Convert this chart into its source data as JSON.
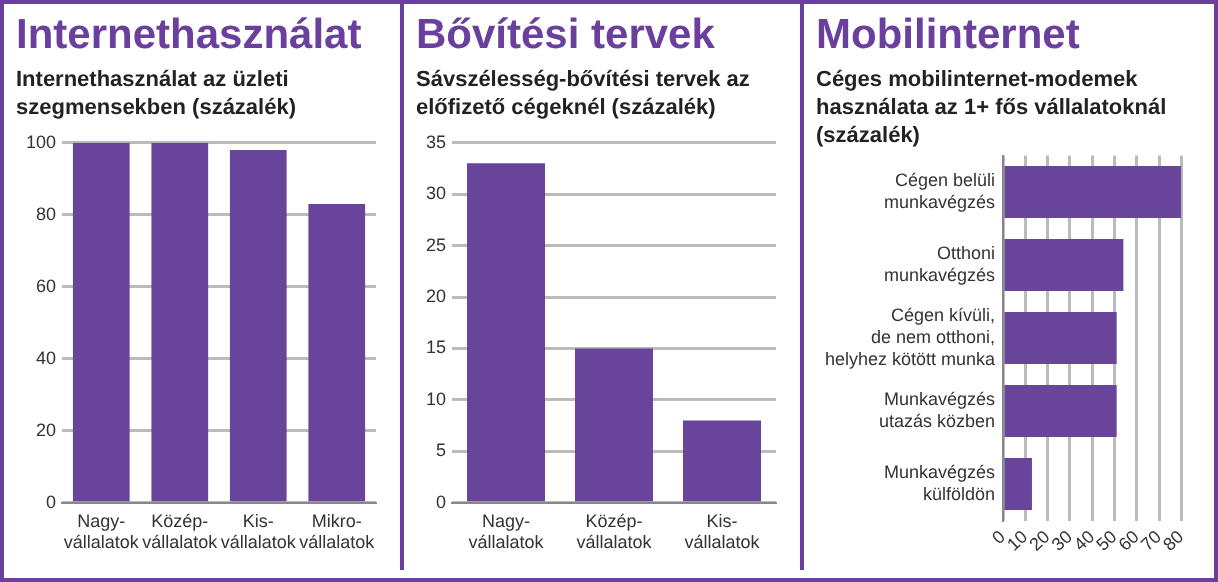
{
  "chart_data": [
    {
      "type": "bar",
      "title": "Internethasználat",
      "subtitle": "Internethasználat az üzleti szegmensekben (százalék)",
      "categories": [
        "Nagy-\nvállalatok",
        "Közép-\nvállalatok",
        "Kis-\nvállalatok",
        "Mikro-\nvállalatok"
      ],
      "values": [
        100,
        100,
        98,
        83
      ],
      "color": "#68459b",
      "ylim": [
        0,
        100
      ],
      "yticks": [
        0,
        20,
        40,
        60,
        80,
        100
      ],
      "grid": "y"
    },
    {
      "type": "bar",
      "title": "Bővítési tervek",
      "subtitle": "Sávszélesség-bővítési tervek az előfizető cégeknél (százalék)",
      "categories": [
        "Nagy-\nvállalatok",
        "Közép-\nvállalatok",
        "Kis-\nvállalatok"
      ],
      "values": [
        33,
        15,
        8
      ],
      "color": "#68459b",
      "ylim": [
        0,
        35
      ],
      "yticks": [
        0,
        5,
        10,
        15,
        20,
        25,
        30,
        35
      ],
      "grid": "y"
    },
    {
      "type": "bar",
      "orientation": "horizontal",
      "title": "Mobilinternet",
      "subtitle": "Céges mobilinternet-modemek használata az 1+ fős vállalatoknál (százalék)",
      "categories": [
        "Cégen belüli\nmunkavégzés",
        "Otthoni\nmunkavégzés",
        "Cégen kívüli,\nde nem otthoni,\nhelyhez kötött munka",
        "Munkavégzés\nutazás közben",
        "Munkavégzés\nkülföldön"
      ],
      "values": [
        80,
        54,
        51,
        51,
        13
      ],
      "color": "#68459b",
      "xlim": [
        0,
        80
      ],
      "xticks": [
        0,
        10,
        20,
        30,
        40,
        50,
        60,
        70,
        80
      ],
      "grid": "x"
    }
  ]
}
